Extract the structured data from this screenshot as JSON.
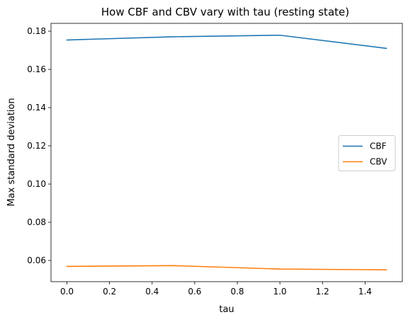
{
  "chart_data": {
    "type": "line",
    "title": "How CBF and CBV vary with tau (resting state)",
    "xlabel": "tau",
    "ylabel": "Max standard deviation",
    "xlim": [
      -0.075,
      1.575
    ],
    "ylim": [
      0.0489,
      0.1841
    ],
    "xticks": [
      0.0,
      0.2,
      0.4,
      0.6,
      0.8,
      1.0,
      1.2,
      1.4
    ],
    "xtick_labels": [
      "0.0",
      "0.2",
      "0.4",
      "0.6",
      "0.8",
      "1.0",
      "1.2",
      "1.4"
    ],
    "yticks": [
      0.06,
      0.08,
      0.1,
      0.12,
      0.14,
      0.16,
      0.18
    ],
    "ytick_labels": [
      "0.06",
      "0.08",
      "0.10",
      "0.12",
      "0.14",
      "0.16",
      "0.18"
    ],
    "grid": false,
    "legend_position": "center-right",
    "x": [
      0.0,
      0.5,
      1.0,
      1.5
    ],
    "series": [
      {
        "name": "CBF",
        "color": "#1f77b4",
        "values": [
          0.1754,
          0.1771,
          0.1779,
          0.171
        ]
      },
      {
        "name": "CBV",
        "color": "#ff7f0e",
        "values": [
          0.0569,
          0.0573,
          0.0555,
          0.0551
        ]
      }
    ]
  }
}
